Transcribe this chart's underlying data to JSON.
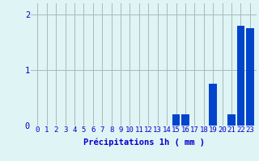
{
  "hours": [
    0,
    1,
    2,
    3,
    4,
    5,
    6,
    7,
    8,
    9,
    10,
    11,
    12,
    13,
    14,
    15,
    16,
    17,
    18,
    19,
    20,
    21,
    22,
    23
  ],
  "values": [
    0,
    0,
    0,
    0,
    0,
    0,
    0,
    0,
    0,
    0,
    0,
    0,
    0,
    0,
    0,
    0.2,
    0.2,
    0,
    0,
    0.75,
    0,
    0.2,
    1.8,
    1.75
  ],
  "bar_color": "#0044cc",
  "background_color": "#dff4f4",
  "grid_color": "#aababa",
  "xlabel": "Précipitations 1h ( mm )",
  "ylim": [
    0,
    2.2
  ],
  "yticks": [
    0,
    1,
    2
  ],
  "xlabel_color": "#0000cc",
  "tick_color": "#0000cc",
  "xlabel_fontsize": 7.5,
  "tick_fontsize": 6.5,
  "bar_width": 0.85
}
